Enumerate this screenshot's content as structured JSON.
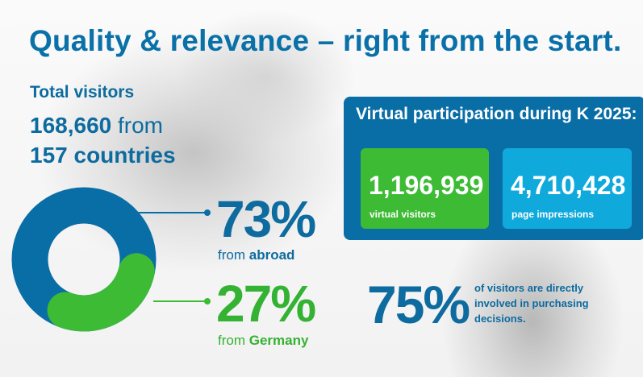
{
  "title": "Quality & relevance – right from the start.",
  "total_visitors": {
    "label": "Total visitors",
    "count": "168,660",
    "from_word": "from",
    "countries": "157 countries"
  },
  "visitor_split": {
    "abroad": {
      "percent": "73%",
      "prefix": "from",
      "label": "abroad",
      "value": 73,
      "color": "#0a6ea6"
    },
    "germany": {
      "percent": "27%",
      "prefix": "from",
      "label": "Germany",
      "value": 27,
      "color": "#3dbb34"
    }
  },
  "virtual": {
    "title": "Virtual participation during K 2025:",
    "visitors": {
      "value": "1,196,939",
      "label": "virtual visitors",
      "color": "#3dbb34"
    },
    "impressions": {
      "value": "4,710,428",
      "label": "page impressions",
      "color": "#10a9dc"
    }
  },
  "purchasing": {
    "percent": "75%",
    "text": "of visitors are directly involved in purchasing decisions."
  }
}
